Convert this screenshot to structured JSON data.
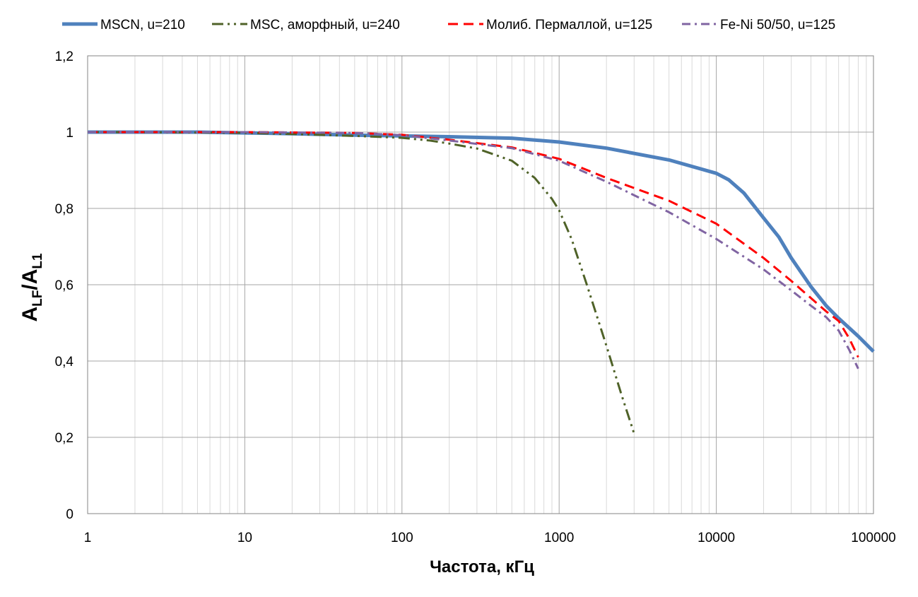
{
  "chart_data": {
    "type": "line",
    "xscale": "log",
    "xlim": [
      1,
      100000
    ],
    "ylim": [
      0,
      1.2
    ],
    "grid": true,
    "legend_position": "top",
    "xlabel": "Частота, кГц",
    "ylabel": {
      "A1": "A",
      "sub1": "LF",
      "slash": "/A",
      "sub2": "L1"
    },
    "x_ticks": [
      1,
      10,
      100,
      1000,
      10000,
      100000
    ],
    "x_tick_labels": [
      "1",
      "10",
      "100",
      "1000",
      "10000",
      "100000"
    ],
    "y_ticks": [
      0,
      0.2,
      0.4,
      0.6,
      0.8,
      1,
      1.2
    ],
    "y_tick_labels": [
      "0",
      "0,2",
      "0,4",
      "0,6",
      "0,8",
      "1",
      "1,2"
    ],
    "series": [
      {
        "name": "MSCN, u=210",
        "color": "#4F81BD",
        "dash": "solid",
        "x": [
          1,
          2,
          5,
          10,
          20,
          50,
          100,
          200,
          500,
          1000,
          2000,
          5000,
          10000,
          12000,
          15000,
          20000,
          25000,
          30000,
          40000,
          50000,
          60000,
          80000,
          100000
        ],
        "y": [
          1.0,
          1.0,
          1.0,
          0.998,
          0.996,
          0.992,
          0.99,
          0.988,
          0.984,
          0.974,
          0.958,
          0.927,
          0.892,
          0.875,
          0.84,
          0.775,
          0.725,
          0.67,
          0.595,
          0.545,
          0.512,
          0.465,
          0.425
        ]
      },
      {
        "name": "MSC, аморфный, u=240",
        "color": "#4F6228",
        "dash": "dashdotdot",
        "x": [
          1,
          2,
          5,
          10,
          20,
          50,
          100,
          150,
          200,
          300,
          500,
          700,
          900,
          1000,
          1200,
          1500,
          2000,
          2500,
          3000
        ],
        "y": [
          1.0,
          1.0,
          0.999,
          0.998,
          0.995,
          0.99,
          0.985,
          0.978,
          0.97,
          0.957,
          0.925,
          0.88,
          0.825,
          0.795,
          0.72,
          0.6,
          0.44,
          0.31,
          0.21
        ]
      },
      {
        "name": "Молиб. Пермаллой, u=125",
        "color": "#FF0000",
        "dash": "dash",
        "x": [
          1,
          10,
          50,
          100,
          200,
          500,
          1000,
          2000,
          5000,
          10000,
          20000,
          30000,
          40000,
          50000,
          60000,
          70000,
          80000
        ],
        "y": [
          1.0,
          1.0,
          0.998,
          0.993,
          0.98,
          0.96,
          0.93,
          0.88,
          0.82,
          0.76,
          0.67,
          0.61,
          0.565,
          0.53,
          0.505,
          0.46,
          0.41
        ]
      },
      {
        "name": "Fe-Ni  50/50, u=125",
        "color": "#8064A2",
        "dash": "dashdot",
        "x": [
          1,
          10,
          50,
          100,
          200,
          500,
          1000,
          2000,
          5000,
          10000,
          20000,
          30000,
          40000,
          50000,
          60000,
          70000,
          80000
        ],
        "y": [
          1.0,
          1.0,
          0.998,
          0.992,
          0.978,
          0.958,
          0.925,
          0.87,
          0.79,
          0.72,
          0.64,
          0.585,
          0.545,
          0.515,
          0.48,
          0.43,
          0.38
        ]
      }
    ]
  }
}
